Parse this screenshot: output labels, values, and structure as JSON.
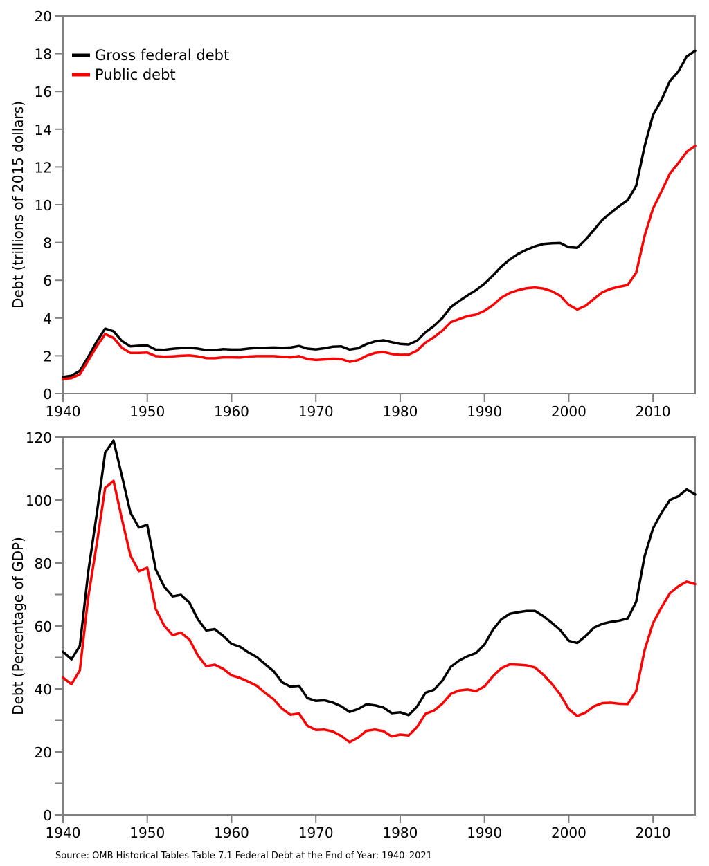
{
  "chart_data": [
    {
      "type": "line",
      "ylabel": "Debt (trillions of 2015 dollars)",
      "xlabel": "",
      "xlim": [
        1940,
        2015
      ],
      "ylim": [
        0,
        20
      ],
      "xticks": [
        1940,
        1950,
        1960,
        1970,
        1980,
        1990,
        2000,
        2010
      ],
      "yticks": [
        0,
        2,
        4,
        6,
        8,
        10,
        12,
        14,
        16,
        18,
        20
      ],
      "legend": {
        "position": "top-left",
        "entries": [
          "Gross federal debt",
          "Public debt"
        ]
      },
      "grid": false,
      "x": [
        1940,
        1941,
        1942,
        1943,
        1944,
        1945,
        1946,
        1947,
        1948,
        1949,
        1950,
        1951,
        1952,
        1953,
        1954,
        1955,
        1956,
        1957,
        1958,
        1959,
        1960,
        1961,
        1962,
        1963,
        1964,
        1965,
        1966,
        1967,
        1968,
        1969,
        1970,
        1971,
        1972,
        1973,
        1974,
        1975,
        1976,
        1977,
        1978,
        1979,
        1980,
        1981,
        1982,
        1983,
        1984,
        1985,
        1986,
        1987,
        1988,
        1989,
        1990,
        1991,
        1992,
        1993,
        1994,
        1995,
        1996,
        1997,
        1998,
        1999,
        2000,
        2001,
        2002,
        2003,
        2004,
        2005,
        2006,
        2007,
        2008,
        2009,
        2010,
        2011,
        2012,
        2013,
        2014,
        2015
      ],
      "series": [
        {
          "name": "Gross federal debt",
          "color": "#000000",
          "values": [
            0.88,
            0.95,
            1.2,
            1.95,
            2.75,
            3.44,
            3.3,
            2.78,
            2.5,
            2.53,
            2.55,
            2.33,
            2.32,
            2.37,
            2.41,
            2.43,
            2.38,
            2.3,
            2.3,
            2.35,
            2.33,
            2.33,
            2.38,
            2.42,
            2.43,
            2.44,
            2.42,
            2.44,
            2.52,
            2.38,
            2.34,
            2.4,
            2.48,
            2.5,
            2.33,
            2.4,
            2.62,
            2.76,
            2.82,
            2.72,
            2.63,
            2.6,
            2.8,
            3.25,
            3.58,
            4.0,
            4.58,
            4.9,
            5.2,
            5.48,
            5.82,
            6.25,
            6.72,
            7.1,
            7.4,
            7.62,
            7.8,
            7.92,
            7.96,
            7.97,
            7.75,
            7.72,
            8.15,
            8.67,
            9.2,
            9.58,
            9.93,
            10.25,
            11.0,
            13.1,
            14.75,
            15.55,
            16.55,
            17.05,
            17.85,
            18.15
          ]
        },
        {
          "name": "Public debt",
          "color": "#ff0000",
          "values": [
            0.77,
            0.82,
            1.02,
            1.75,
            2.5,
            3.15,
            2.95,
            2.42,
            2.15,
            2.15,
            2.17,
            1.98,
            1.95,
            1.97,
            2.0,
            2.02,
            1.97,
            1.88,
            1.87,
            1.92,
            1.92,
            1.91,
            1.96,
            1.98,
            1.98,
            1.98,
            1.95,
            1.92,
            1.98,
            1.83,
            1.78,
            1.81,
            1.85,
            1.83,
            1.68,
            1.77,
            2.0,
            2.15,
            2.2,
            2.1,
            2.05,
            2.06,
            2.28,
            2.7,
            2.98,
            3.33,
            3.78,
            3.95,
            4.1,
            4.18,
            4.38,
            4.68,
            5.08,
            5.33,
            5.48,
            5.58,
            5.62,
            5.56,
            5.42,
            5.18,
            4.7,
            4.45,
            4.65,
            5.02,
            5.37,
            5.55,
            5.66,
            5.75,
            6.4,
            8.35,
            9.8,
            10.7,
            11.65,
            12.2,
            12.8,
            13.12
          ]
        }
      ]
    },
    {
      "type": "line",
      "ylabel": "Debt (Percentage of GDP)",
      "xlabel": "",
      "xlim": [
        1940,
        2015
      ],
      "ylim": [
        0,
        120
      ],
      "xticks": [
        1940,
        1950,
        1960,
        1970,
        1980,
        1990,
        2000,
        2010
      ],
      "yticks": [
        0,
        20,
        40,
        60,
        80,
        100,
        120
      ],
      "yminor_step": 10,
      "grid": false,
      "x": [
        1940,
        1941,
        1942,
        1943,
        1944,
        1945,
        1946,
        1947,
        1948,
        1949,
        1950,
        1951,
        1952,
        1953,
        1954,
        1955,
        1956,
        1957,
        1958,
        1959,
        1960,
        1961,
        1962,
        1963,
        1964,
        1965,
        1966,
        1967,
        1968,
        1969,
        1970,
        1971,
        1972,
        1973,
        1974,
        1975,
        1976,
        1977,
        1978,
        1979,
        1980,
        1981,
        1982,
        1983,
        1984,
        1985,
        1986,
        1987,
        1988,
        1989,
        1990,
        1991,
        1992,
        1993,
        1994,
        1995,
        1996,
        1997,
        1998,
        1999,
        2000,
        2001,
        2002,
        2003,
        2004,
        2005,
        2006,
        2007,
        2008,
        2009,
        2010,
        2011,
        2012,
        2013,
        2014,
        2015
      ],
      "series": [
        {
          "name": "Gross federal debt",
          "color": "#000000",
          "values": [
            51.8,
            49.4,
            53.6,
            77.3,
            95.5,
            115.1,
            118.9,
            107.6,
            96.0,
            91.3,
            92.1,
            78.0,
            72.5,
            69.4,
            69.9,
            67.4,
            62.1,
            58.6,
            59.0,
            56.9,
            54.3,
            53.4,
            51.6,
            50.1,
            47.8,
            45.6,
            42.1,
            40.7,
            41.0,
            37.1,
            36.2,
            36.4,
            35.7,
            34.5,
            32.7,
            33.6,
            35.1,
            34.8,
            34.1,
            32.3,
            32.6,
            31.7,
            34.4,
            38.8,
            39.7,
            42.6,
            47.0,
            49.0,
            50.4,
            51.4,
            54.1,
            58.8,
            62.1,
            63.9,
            64.4,
            64.8,
            64.8,
            63.1,
            61.0,
            58.7,
            55.3,
            54.6,
            56.8,
            59.5,
            60.7,
            61.3,
            61.7,
            62.4,
            67.7,
            82.2,
            91.0,
            95.9,
            100.0,
            101.2,
            103.4,
            101.8
          ]
        },
        {
          "name": "Public debt",
          "color": "#ff0000",
          "values": [
            43.6,
            41.5,
            45.9,
            69.2,
            86.0,
            103.9,
            106.1,
            93.9,
            82.4,
            77.4,
            78.5,
            65.4,
            60.1,
            57.1,
            57.9,
            55.7,
            50.6,
            47.2,
            47.7,
            46.4,
            44.3,
            43.5,
            42.3,
            41.0,
            38.7,
            36.7,
            33.7,
            31.8,
            32.2,
            28.3,
            27.0,
            27.1,
            26.5,
            25.1,
            23.1,
            24.5,
            26.7,
            27.1,
            26.6,
            24.9,
            25.5,
            25.2,
            27.9,
            32.1,
            33.1,
            35.3,
            38.4,
            39.5,
            39.8,
            39.3,
            40.8,
            44.0,
            46.6,
            47.8,
            47.7,
            47.5,
            46.8,
            44.5,
            41.6,
            38.2,
            33.6,
            31.4,
            32.5,
            34.5,
            35.5,
            35.6,
            35.3,
            35.2,
            39.3,
            52.3,
            60.9,
            65.9,
            70.4,
            72.6,
            74.1,
            73.3
          ]
        }
      ]
    }
  ],
  "source_note": "Source: OMB Historical Tables Table 7.1 Federal Debt at the End of Year: 1940–2021"
}
